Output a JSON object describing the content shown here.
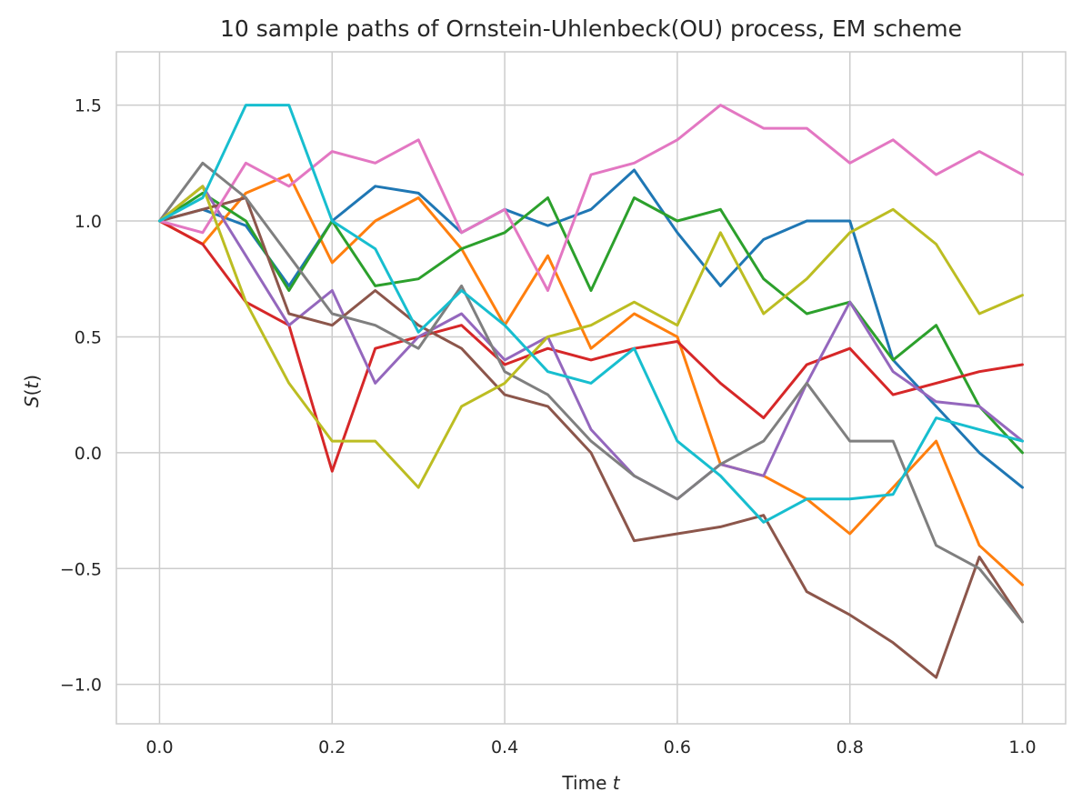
{
  "chart_data": {
    "type": "line",
    "title": "10 sample paths of Ornstein-Uhlenbeck(OU) process, EM scheme",
    "xlabel": "Time t",
    "xlabel_main": "Time",
    "xlabel_var": "t",
    "ylabel": "S(t)",
    "ylabel_fn": "S",
    "ylabel_arg": "t",
    "xlim": [
      -0.05,
      1.05
    ],
    "ylim": [
      -1.17,
      1.73
    ],
    "x_ticks": [
      0.0,
      0.2,
      0.4,
      0.6,
      0.8,
      1.0
    ],
    "x_tick_labels": [
      "0.0",
      "0.2",
      "0.4",
      "0.6",
      "0.8",
      "1.0"
    ],
    "y_ticks": [
      -1.0,
      -0.5,
      0.0,
      0.5,
      1.0,
      1.5
    ],
    "y_tick_labels": [
      "−1.0",
      "−0.5",
      "0.0",
      "0.5",
      "1.0",
      "1.5"
    ],
    "grid": true,
    "x": [
      0.0,
      0.05,
      0.1,
      0.15,
      0.2,
      0.25,
      0.3,
      0.35,
      0.4,
      0.45,
      0.5,
      0.55,
      0.6,
      0.65,
      0.7,
      0.75,
      0.8,
      0.85,
      0.9,
      0.95,
      1.0
    ],
    "series": [
      {
        "color": "#1f77b4",
        "values": [
          1.0,
          1.05,
          0.98,
          0.72,
          1.0,
          1.15,
          1.12,
          0.95,
          1.05,
          0.98,
          1.05,
          1.22,
          0.95,
          0.72,
          0.92,
          1.0,
          1.0,
          0.4,
          0.2,
          0.0,
          -0.15
        ]
      },
      {
        "color": "#ff7f0e",
        "values": [
          1.0,
          0.9,
          1.12,
          1.2,
          0.82,
          1.0,
          1.1,
          0.88,
          0.55,
          0.85,
          0.45,
          0.6,
          0.5,
          -0.05,
          -0.1,
          -0.2,
          -0.35,
          -0.15,
          0.05,
          -0.4,
          -0.57
        ]
      },
      {
        "color": "#2ca02c",
        "values": [
          1.0,
          1.12,
          1.0,
          0.7,
          1.0,
          0.72,
          0.75,
          0.88,
          0.95,
          1.1,
          0.7,
          1.1,
          1.0,
          1.05,
          0.75,
          0.6,
          0.65,
          0.4,
          0.55,
          0.2,
          0.0
        ]
      },
      {
        "color": "#d62728",
        "values": [
          1.0,
          0.9,
          0.65,
          0.55,
          -0.08,
          0.45,
          0.5,
          0.55,
          0.38,
          0.45,
          0.4,
          0.45,
          0.48,
          0.3,
          0.15,
          0.38,
          0.45,
          0.25,
          0.3,
          0.35,
          0.38
        ]
      },
      {
        "color": "#9467bd",
        "values": [
          1.0,
          1.15,
          0.85,
          0.55,
          0.7,
          0.3,
          0.5,
          0.6,
          0.4,
          0.5,
          0.1,
          -0.1,
          -0.2,
          -0.05,
          -0.1,
          0.3,
          0.65,
          0.35,
          0.22,
          0.2,
          0.05
        ]
      },
      {
        "color": "#8c564b",
        "values": [
          1.0,
          1.05,
          1.1,
          0.6,
          0.55,
          0.7,
          0.55,
          0.45,
          0.25,
          0.2,
          0.0,
          -0.38,
          -0.35,
          -0.32,
          -0.27,
          -0.6,
          -0.7,
          -0.82,
          -0.97,
          -0.45,
          -0.73
        ]
      },
      {
        "color": "#e377c2",
        "values": [
          1.0,
          0.95,
          1.25,
          1.15,
          1.3,
          1.25,
          1.35,
          0.95,
          1.05,
          0.7,
          1.2,
          1.25,
          1.35,
          1.5,
          1.4,
          1.4,
          1.25,
          1.35,
          1.2,
          1.3,
          1.2
        ]
      },
      {
        "color": "#7f7f7f",
        "values": [
          1.0,
          1.25,
          1.1,
          0.85,
          0.6,
          0.55,
          0.45,
          0.72,
          0.35,
          0.25,
          0.05,
          -0.1,
          -0.2,
          -0.05,
          0.05,
          0.3,
          0.05,
          0.05,
          -0.4,
          -0.5,
          -0.73
        ]
      },
      {
        "color": "#bcbd22",
        "values": [
          1.0,
          1.15,
          0.65,
          0.3,
          0.05,
          0.05,
          -0.15,
          0.2,
          0.3,
          0.5,
          0.55,
          0.65,
          0.55,
          0.95,
          0.6,
          0.75,
          0.95,
          1.05,
          0.9,
          0.6,
          0.68
        ]
      },
      {
        "color": "#17becf",
        "values": [
          1.0,
          1.1,
          1.5,
          1.5,
          1.0,
          0.88,
          0.52,
          0.7,
          0.55,
          0.35,
          0.3,
          0.45,
          0.05,
          -0.1,
          -0.3,
          -0.2,
          -0.2,
          -0.18,
          0.15,
          0.1,
          0.05
        ]
      }
    ]
  }
}
